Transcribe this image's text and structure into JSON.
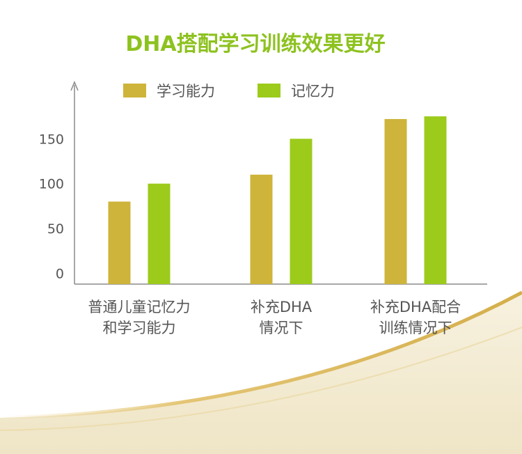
{
  "chart_data": {
    "type": "bar",
    "title": "DHA搭配学习训练效果更好",
    "categories": [
      [
        "普通儿童记忆力",
        "和学习能力"
      ],
      [
        "补充DHA",
        "情况下"
      ],
      [
        "补充DHA配合",
        "训练情况下"
      ]
    ],
    "series": [
      {
        "name": "学习能力",
        "values": [
          80,
          110,
          172
        ]
      },
      {
        "name": "记忆力",
        "values": [
          100,
          150,
          175
        ]
      }
    ],
    "yticks": [
      0,
      50,
      100,
      150
    ],
    "ylim": [
      -12,
      210
    ],
    "legend_position": "top",
    "grid": false
  },
  "colors": {
    "series": [
      "#CEB43A",
      "#9CCB1C"
    ],
    "title": "#8DC21F",
    "axis": "#8a8a8a",
    "text": "#555555",
    "decor_gold": "#D9B65A",
    "decor_cream": "#F4EEDB"
  }
}
